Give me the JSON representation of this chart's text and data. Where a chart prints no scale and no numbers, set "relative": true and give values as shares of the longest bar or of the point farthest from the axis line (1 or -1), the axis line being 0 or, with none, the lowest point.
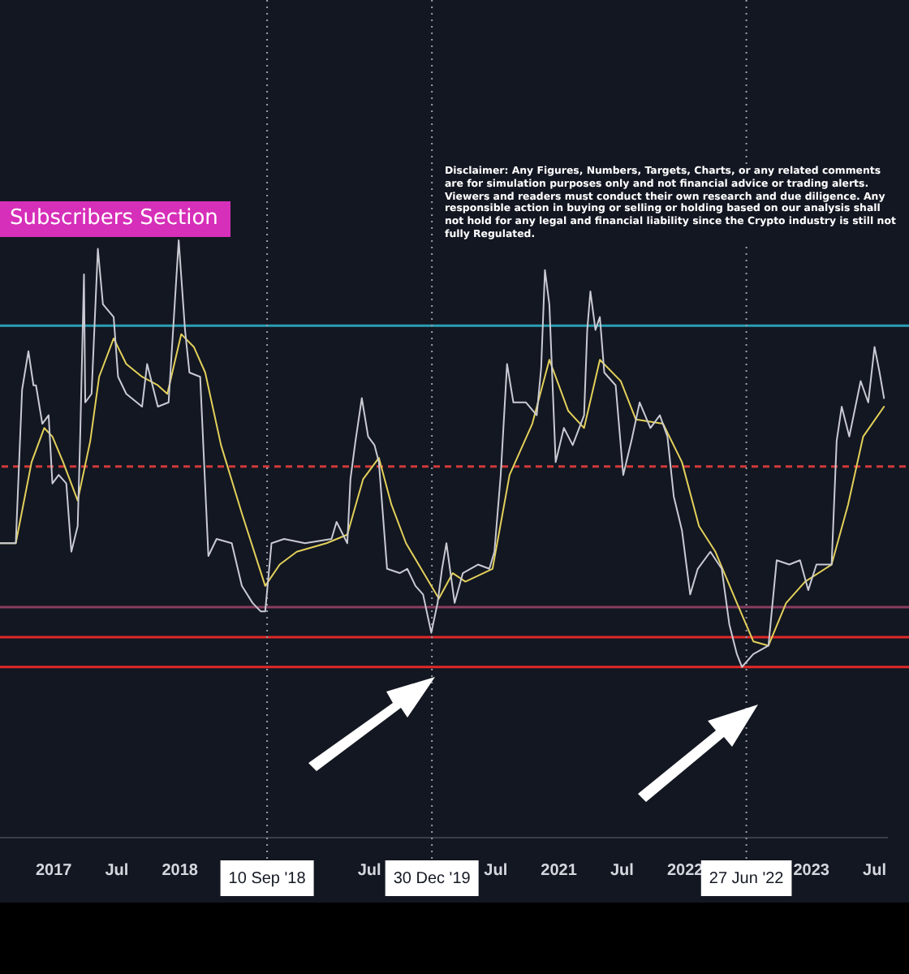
{
  "chart_data": {
    "type": "line",
    "subtitle": "Subscribers Section",
    "annotations": [
      "Disclaimer: Any Figures, Numbers, Targets, Charts, or any related comments are for simulation purposes only and not financial advice or trading alerts. Viewers and readers must conduct their own research and due diligence. Any responsible action in buying or selling or holding based on our analysis shall not hold for any legal and financial liability since the Crypto industry is still not fully Regulated."
    ],
    "relative": true,
    "legend": false,
    "grid": false,
    "marker": "none",
    "xlim": [
      2016.575,
      2023.6
    ],
    "xticks": [
      {
        "value": 2017,
        "label": "2017"
      },
      {
        "value": 2017.5,
        "label": "Jul"
      },
      {
        "value": 2018,
        "label": "2018"
      },
      {
        "value": 2019.5,
        "label": "Jul"
      },
      {
        "value": 2020.5,
        "label": "Jul"
      },
      {
        "value": 2021,
        "label": "2021"
      },
      {
        "value": 2021.5,
        "label": "Jul"
      },
      {
        "value": 2022,
        "label": "2022"
      },
      {
        "value": 2023,
        "label": "2023"
      },
      {
        "value": 2023.5,
        "label": "Jul"
      }
    ],
    "ref_lines": [
      {
        "axis": "y",
        "value": 0.8,
        "color": "#2a9fb3",
        "line_style": "solid"
      },
      {
        "axis": "y",
        "value": 0.47,
        "color": "#d03a3a",
        "line_style": "dashed"
      },
      {
        "axis": "y",
        "value": 0.14,
        "color": "#8a3d5e",
        "line_style": "solid"
      },
      {
        "axis": "y",
        "value": 0.07,
        "color": "#e02828",
        "line_style": "solid"
      },
      {
        "axis": "y",
        "value": 0,
        "color": "#e02828",
        "line_style": "solid"
      },
      {
        "axis": "x",
        "value": 2018.69,
        "label": "10 Sep '18",
        "color": "#9a9eaa",
        "line_style": "dotted"
      },
      {
        "axis": "x",
        "value": 2019.995,
        "label": "30 Dec '19",
        "color": "#9a9eaa",
        "line_style": "dotted"
      },
      {
        "axis": "x",
        "value": 2022.485,
        "label": "27 Jun '22",
        "color": "#9a9eaa",
        "line_style": "dotted"
      }
    ],
    "series": [
      {
        "color": "#c9cad3",
        "x": [
          2016.575,
          2016.7,
          2016.75,
          2016.8,
          2016.84,
          2016.86,
          2016.91,
          2016.96,
          2016.99,
          2017.04,
          2017.1,
          2017.14,
          2017.19,
          2017.21,
          2017.24,
          2017.25,
          2017.3,
          2017.35,
          2017.39,
          2017.475,
          2017.51,
          2017.575,
          2017.7,
          2017.74,
          2017.825,
          2017.91,
          2017.99,
          2018.04,
          2018.075,
          2018.16,
          2018.225,
          2018.29,
          2018.41,
          2018.49,
          2018.575,
          2018.64,
          2018.675,
          2018.725,
          2018.825,
          2018.99,
          2019.2,
          2019.24,
          2019.325,
          2019.35,
          2019.39,
          2019.44,
          2019.49,
          2019.54,
          2019.575,
          2019.64,
          2019.74,
          2019.8,
          2019.865,
          2019.925,
          2019.99,
          2020.04,
          2020.075,
          2020.11,
          2020.175,
          2020.24,
          2020.3,
          2020.36,
          2020.45,
          2020.49,
          2020.54,
          2020.59,
          2020.64,
          2020.74,
          2020.825,
          2020.86,
          2020.89,
          2020.925,
          2020.975,
          2021.04,
          2021.11,
          2021.2,
          2021.225,
          2021.25,
          2021.29,
          2021.325,
          2021.36,
          2021.45,
          2021.51,
          2021.575,
          2021.64,
          2021.725,
          2021.8,
          2021.86,
          2021.91,
          2021.975,
          2022.04,
          2022.1,
          2022.2,
          2022.29,
          2022.35,
          2022.41,
          2022.45,
          2022.54,
          2022.66,
          2022.725,
          2022.825,
          2022.91,
          2022.975,
          2023.04,
          2023.16,
          2023.2,
          2023.24,
          2023.3,
          2023.39,
          2023.45,
          2023.5,
          2023.54,
          2023.575
        ],
        "values": [
          0.29,
          0.29,
          0.65,
          0.74,
          0.66,
          0.66,
          0.57,
          0.59,
          0.43,
          0.45,
          0.43,
          0.27,
          0.33,
          0.54,
          0.92,
          0.62,
          0.64,
          0.98,
          0.85,
          0.82,
          0.68,
          0.64,
          0.61,
          0.71,
          0.61,
          0.62,
          1,
          0.79,
          0.69,
          0.68,
          0.26,
          0.3,
          0.29,
          0.19,
          0.15,
          0.13,
          0.13,
          0.29,
          0.3,
          0.29,
          0.3,
          0.34,
          0.29,
          0.44,
          0.53,
          0.63,
          0.54,
          0.52,
          0.48,
          0.23,
          0.22,
          0.23,
          0.19,
          0.17,
          0.08,
          0.15,
          0.23,
          0.29,
          0.15,
          0.22,
          0.23,
          0.24,
          0.23,
          0.27,
          0.45,
          0.71,
          0.62,
          0.62,
          0.59,
          0.7,
          0.93,
          0.85,
          0.48,
          0.56,
          0.52,
          0.59,
          0.79,
          0.88,
          0.79,
          0.82,
          0.69,
          0.66,
          0.45,
          0.53,
          0.62,
          0.56,
          0.59,
          0.54,
          0.4,
          0.32,
          0.17,
          0.23,
          0.27,
          0.23,
          0.1,
          0.03,
          0,
          0.03,
          0.05,
          0.25,
          0.24,
          0.25,
          0.18,
          0.24,
          0.24,
          0.53,
          0.61,
          0.54,
          0.67,
          0.62,
          0.75,
          0.69,
          0.63
        ]
      },
      {
        "color": "#e3d05a",
        "x": [
          2016.575,
          2016.7,
          2016.825,
          2016.925,
          2016.99,
          2017.075,
          2017.19,
          2017.29,
          2017.36,
          2017.475,
          2017.575,
          2017.7,
          2017.825,
          2017.9,
          2018.01,
          2018.11,
          2018.2,
          2018.325,
          2018.49,
          2018.675,
          2018.79,
          2018.925,
          2019.16,
          2019.325,
          2019.45,
          2019.575,
          2019.675,
          2019.79,
          2019.91,
          2020.05,
          2020.16,
          2020.26,
          2020.475,
          2020.61,
          2020.79,
          2020.925,
          2021.075,
          2021.2,
          2021.325,
          2021.49,
          2021.61,
          2021.825,
          2021.975,
          2022.11,
          2022.24,
          2022.41,
          2022.54,
          2022.66,
          2022.8,
          2022.95,
          2023.16,
          2023.29,
          2023.41,
          2023.575
        ],
        "values": [
          0.29,
          0.29,
          0.48,
          0.56,
          0.54,
          0.48,
          0.39,
          0.53,
          0.68,
          0.77,
          0.71,
          0.68,
          0.66,
          0.64,
          0.78,
          0.75,
          0.69,
          0.52,
          0.36,
          0.19,
          0.24,
          0.27,
          0.29,
          0.31,
          0.44,
          0.49,
          0.38,
          0.29,
          0.23,
          0.16,
          0.22,
          0.2,
          0.23,
          0.45,
          0.57,
          0.72,
          0.6,
          0.56,
          0.72,
          0.67,
          0.58,
          0.57,
          0.48,
          0.33,
          0.27,
          0.15,
          0.06,
          0.05,
          0.15,
          0.2,
          0.24,
          0.38,
          0.54,
          0.61
        ]
      }
    ]
  }
}
